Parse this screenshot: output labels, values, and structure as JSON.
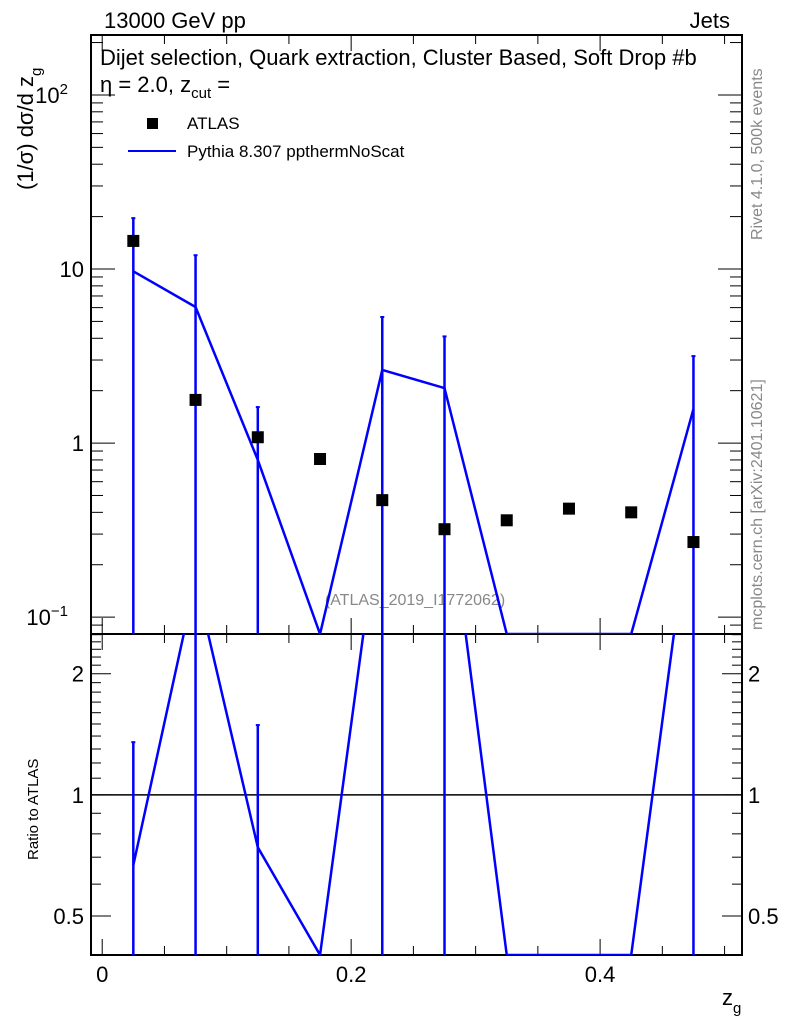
{
  "header": {
    "left": "13000 GeV pp",
    "right": "Jets"
  },
  "title": {
    "main": "Dijet selection, Quark extraction, Cluster Based, Soft Drop #b",
    "beta": "η = 2.0, z",
    "sub": "cut",
    "tail": " ="
  },
  "side": {
    "rivet": "Rivet 4.1.0,  500k events",
    "mcplots": "mcplots.cern.ch [arXiv:2401.10621]"
  },
  "watermark": "(ATLAS_2019_I1772062)",
  "chart_data": [
    {
      "type": "scatter",
      "panel": "main",
      "ylabel": "(1/σ) dσ/d z",
      "ylabel_sub": "g",
      "yscale": "log",
      "ylim": [
        0.08,
        221
      ],
      "xlim": [
        -0.009,
        0.514
      ],
      "yticks": [
        {
          "v": 0.1,
          "t": "10",
          "sup": "−1"
        },
        {
          "v": 1,
          "t": "1"
        },
        {
          "v": 10,
          "t": "10"
        },
        {
          "v": 100,
          "t": "10",
          "sup": "2"
        }
      ],
      "legend": [
        "ATLAS",
        "Pythia 8.307 ppthermNoScat"
      ],
      "legend_position": "top-left",
      "x": [
        0.025,
        0.075,
        0.125,
        0.175,
        0.225,
        0.275,
        0.325,
        0.375,
        0.425,
        0.475
      ],
      "series": [
        {
          "name": "ATLAS",
          "values": [
            14.5,
            1.77,
            1.08,
            0.81,
            0.47,
            0.32,
            0.36,
            0.42,
            0.4,
            0.27
          ],
          "color": "#000000"
        },
        {
          "name": "Pythia 8.307 ppthermNoScat",
          "values": [
            9.7,
            6.05,
            0.8,
            0,
            2.63,
            2.07,
            0,
            0,
            0,
            1.57
          ],
          "err_up": [
            19.6,
            12.0,
            1.61,
            0,
            5.3,
            4.1,
            0,
            0,
            0,
            3.16
          ],
          "color": "#0000ff"
        }
      ]
    },
    {
      "type": "line",
      "panel": "ratio",
      "ylabel": "Ratio to ATLAS",
      "xlabel": "z",
      "xlabel_sub": "g",
      "yscale": "log",
      "ylim": [
        0.4,
        2.51
      ],
      "yticks": [
        {
          "v": 0.5,
          "t": "0.5"
        },
        {
          "v": 1,
          "t": "1"
        },
        {
          "v": 2,
          "t": "2"
        }
      ],
      "xticks": [
        {
          "v": 0,
          "t": "0"
        },
        {
          "v": 0.2,
          "t": "0.2"
        },
        {
          "v": 0.4,
          "t": "0.4"
        }
      ]
    }
  ]
}
